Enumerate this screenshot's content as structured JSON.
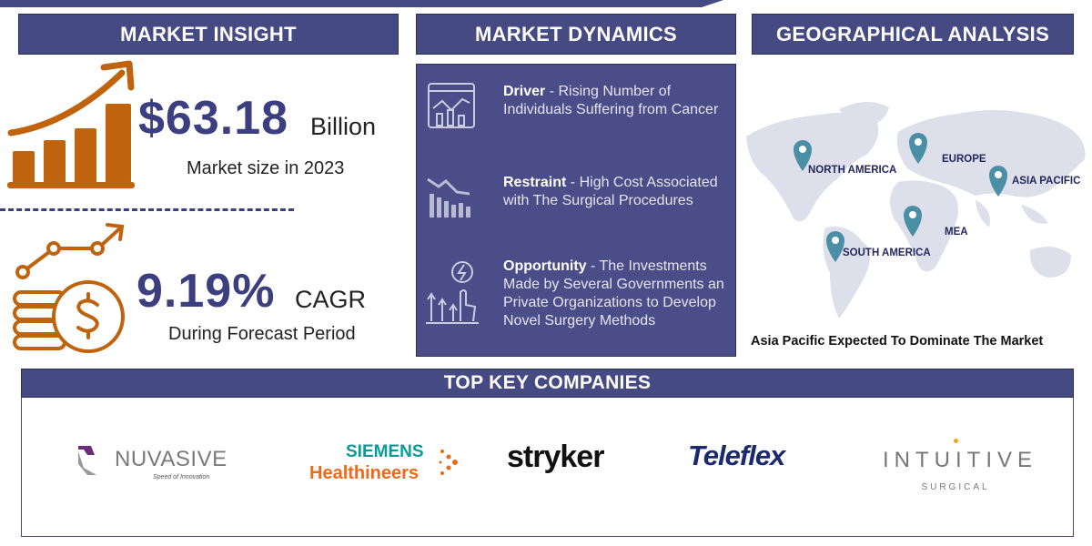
{
  "market_insight": {
    "header": "MARKET INSIGHT",
    "market_size_value": "$63.18",
    "market_size_unit": "Billion",
    "market_size_caption": "Market size in 2023",
    "cagr_value": "9.19%",
    "cagr_unit": "CAGR",
    "cagr_caption": "During Forecast Period"
  },
  "market_dynamics": {
    "header": "MARKET DYNAMICS",
    "items": [
      {
        "label": "Driver",
        "text": " - Rising Number of Individuals Suffering from Cancer",
        "icon": "analytics-dashboard-icon"
      },
      {
        "label": "Restraint",
        "text": " - High Cost Associated with The Surgical Procedures",
        "icon": "declining-chart-icon"
      },
      {
        "label": "Opportunity",
        "text": " - The Investments Made by Several Governments an Private Organizations to Develop Novel Surgery Methods",
        "icon": "investment-growth-icon"
      }
    ]
  },
  "geographical_analysis": {
    "header": "GEOGRAPHICAL ANALYSIS",
    "regions": [
      "NORTH AMERICA",
      "EUROPE",
      "ASIA PACIFIC",
      "MEA",
      "SOUTH AMERICA"
    ],
    "caption": "Asia Pacific Expected To Dominate The Market"
  },
  "top_key_companies": {
    "header": "TOP KEY COMPANIES",
    "companies": [
      {
        "name": "NUVASIVE",
        "tagline": "Speed of Innovation"
      },
      {
        "name": "SIEMENS",
        "tagline": "Healthineers"
      },
      {
        "name": "stryker"
      },
      {
        "name": "Teleflex"
      },
      {
        "name": "INTUITIVE",
        "tagline": "SURGICAL"
      }
    ]
  },
  "colors": {
    "navy": "#464a82",
    "accent_orange": "#c0630e",
    "pin_teal": "#4b8fa6",
    "map_gray": "#dde0ea"
  }
}
